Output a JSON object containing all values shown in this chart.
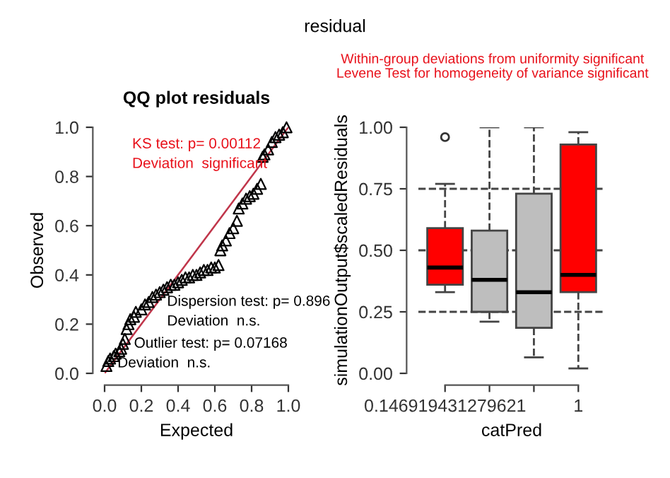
{
  "chart_data": [
    {
      "type": "scatter",
      "title": "QQ plot residuals",
      "xlabel": "Expected",
      "ylabel": "Observed",
      "xlim": [
        0,
        1
      ],
      "ylim": [
        0,
        1
      ],
      "xticks": [
        {
          "value": 0,
          "label": "0.0"
        },
        0.2,
        0.4,
        0.6,
        0.8,
        {
          "value": 1,
          "label": "1.0"
        }
      ],
      "yticks": [
        {
          "value": 0,
          "label": "0.0"
        },
        0.2,
        0.4,
        0.6,
        0.8,
        {
          "value": 1,
          "label": "1.0"
        }
      ],
      "grid": false,
      "annotations": [
        "residual",
        "KS test: p= 0.00112",
        "Deviation  significant",
        "Dispersion test: p= 0.896",
        "Deviation  n.s.",
        "Outlier test: p= 0.07168",
        "Deviation  n.s."
      ],
      "series": [
        {
          "color": "#000000",
          "marker": "triangle",
          "x": [
            0.01,
            0.02,
            0.03,
            0.05,
            0.06,
            0.08,
            0.09,
            0.1,
            0.11,
            0.12,
            0.13,
            0.14,
            0.16,
            0.17,
            0.2,
            0.22,
            0.24,
            0.26,
            0.28,
            0.3,
            0.32,
            0.34,
            0.36,
            0.38,
            0.4,
            0.42,
            0.44,
            0.46,
            0.48,
            0.5,
            0.52,
            0.54,
            0.56,
            0.58,
            0.6,
            0.62,
            0.63,
            0.64,
            0.66,
            0.68,
            0.7,
            0.72,
            0.73,
            0.75,
            0.77,
            0.79,
            0.81,
            0.83,
            0.85,
            0.86,
            0.87,
            0.89,
            0.91,
            0.93,
            0.95,
            0.97,
            0.99
          ],
          "values": [
            0.03,
            0.05,
            0.06,
            0.07,
            0.08,
            0.09,
            0.1,
            0.12,
            0.14,
            0.18,
            0.2,
            0.22,
            0.23,
            0.25,
            0.26,
            0.28,
            0.29,
            0.31,
            0.32,
            0.33,
            0.34,
            0.35,
            0.36,
            0.36,
            0.37,
            0.38,
            0.39,
            0.39,
            0.4,
            0.4,
            0.41,
            0.42,
            0.42,
            0.43,
            0.43,
            0.44,
            0.5,
            0.52,
            0.54,
            0.57,
            0.59,
            0.62,
            0.67,
            0.69,
            0.71,
            0.72,
            0.73,
            0.75,
            0.77,
            0.88,
            0.89,
            0.91,
            0.94,
            0.96,
            0.97,
            0.98,
            1.0
          ]
        },
        {
          "type": "line",
          "color": "#c0354a",
          "x": [
            0,
            1
          ],
          "values": [
            0,
            1
          ]
        }
      ]
    },
    {
      "type": "box",
      "title": "Within-group deviations from uniformity significant",
      "subtitle": "Levene Test for homogeneity of variance significant",
      "xlabel": "catPred",
      "ylabel": "simulationOutput$scaledResiduals",
      "categories": [
        "0.146919431279621",
        null,
        null,
        "1"
      ],
      "ylim": [
        0,
        1
      ],
      "yticks": [
        {
          "value": 0.0,
          "label": "0.00"
        },
        {
          "value": 0.25,
          "label": "0.25"
        },
        {
          "value": 0.5,
          "label": "0.50"
        },
        {
          "value": 0.75,
          "label": "0.75"
        },
        {
          "value": 1.0,
          "label": "1.00"
        }
      ],
      "colors": [
        "#ff0000",
        "#bebebe",
        "#bebebe",
        "#ff0000"
      ],
      "boxes": [
        {
          "low": 0.33,
          "q1": 0.36,
          "median": 0.43,
          "q3": 0.59,
          "high": 0.77,
          "outliers": [
            0.96
          ]
        },
        {
          "low": 0.21,
          "q1": 0.25,
          "median": 0.38,
          "q3": 0.58,
          "high": 1.0
        },
        {
          "low": 0.065,
          "q1": 0.185,
          "median": 0.33,
          "q3": 0.73,
          "high": 1.0
        },
        {
          "low": 0.02,
          "q1": 0.33,
          "median": 0.4,
          "q3": 0.93,
          "high": 0.98
        }
      ],
      "ref_lines": [
        {
          "axis": "y",
          "value": 0.25,
          "line_style": "dashed"
        },
        {
          "axis": "y",
          "value": 0.5,
          "line_style": "dashed"
        },
        {
          "axis": "y",
          "value": 0.75,
          "line_style": "dashed"
        }
      ],
      "grid": false
    }
  ]
}
